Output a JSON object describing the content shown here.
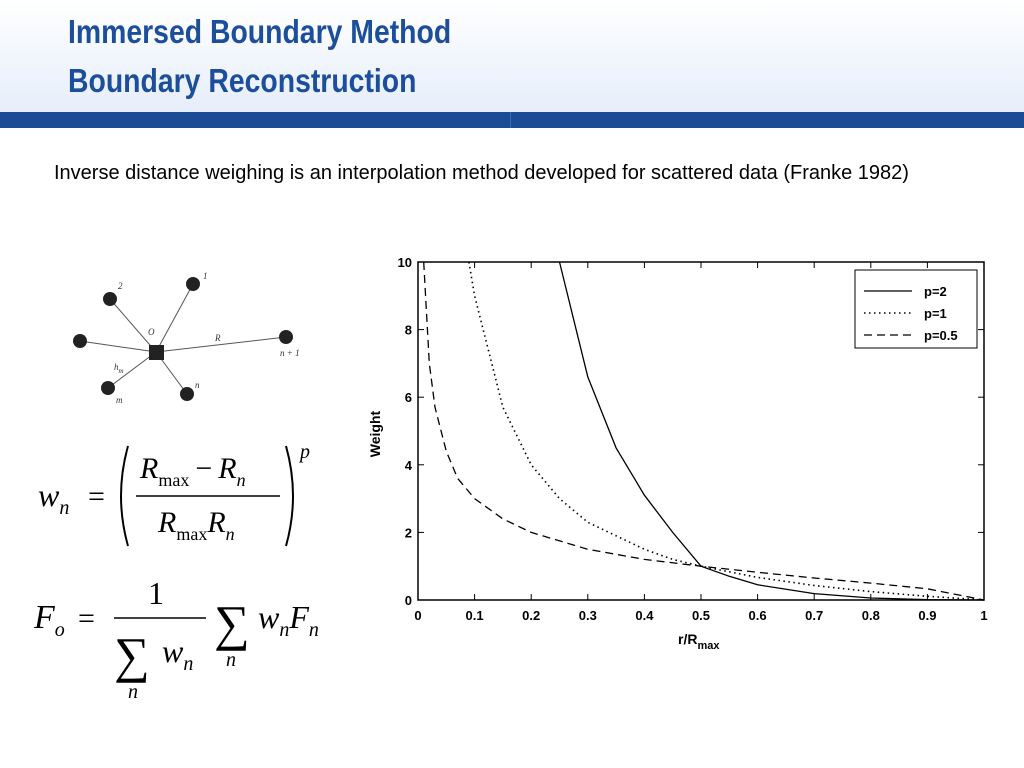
{
  "slide": {
    "title_line1": "Immersed Boundary Method",
    "title_line2": "Boundary Reconstruction",
    "body_text": "Inverse distance weighing is an interpolation method developed for scattered data (Franke 1982)"
  },
  "diagram": {
    "center_label": "O",
    "radius_label": "R",
    "distance_label_base": "h",
    "distance_label_sub": "m",
    "node_labels": [
      "1",
      "2",
      "n + 1",
      "n",
      "m"
    ]
  },
  "formulas": {
    "weight": {
      "lhs_base": "w",
      "lhs_sub": "n",
      "eq": "=",
      "num_R1": "R",
      "num_sub1": "max",
      "minus": "−",
      "num_R2": "R",
      "num_sub2": "n",
      "den_R1": "R",
      "den_sub1": "max",
      "den_R2": "R",
      "den_sub2": "n",
      "exponent": "p"
    },
    "interp": {
      "lhs_base": "F",
      "lhs_sub": "o",
      "eq": "=",
      "num": "1",
      "sum_symbol": "∑",
      "den_w": "w",
      "den_sub": "n",
      "den_index": "n",
      "sum2_index": "n",
      "w": "w",
      "w_sub": "n",
      "F": "F",
      "F_sub": "n"
    }
  },
  "chart_data": {
    "type": "line",
    "xlabel": "r/R",
    "xlabel_sub": "max",
    "ylabel": "Weight",
    "xlim": [
      0,
      1
    ],
    "ylim": [
      0,
      10
    ],
    "x_ticks": [
      "0",
      "0.1",
      "0.2",
      "0.3",
      "0.4",
      "0.5",
      "0.6",
      "0.7",
      "0.8",
      "0.9",
      "1"
    ],
    "y_ticks": [
      "0",
      "2",
      "4",
      "6",
      "8",
      "10"
    ],
    "legend_position": "top-right",
    "series": [
      {
        "name": "p=2",
        "exponent": 2,
        "style": "solid",
        "x": [
          0.25,
          0.3,
          0.35,
          0.4,
          0.45,
          0.5,
          0.55,
          0.6,
          0.7,
          0.8,
          0.9,
          1.0
        ],
        "y": [
          10.0,
          6.6,
          4.5,
          3.1,
          2.0,
          1.0,
          0.7,
          0.45,
          0.19,
          0.06,
          0.01,
          0.0
        ]
      },
      {
        "name": "p=1",
        "exponent": 1,
        "style": "dotted",
        "x": [
          0.09,
          0.1,
          0.15,
          0.2,
          0.25,
          0.3,
          0.35,
          0.4,
          0.45,
          0.5,
          0.6,
          0.7,
          0.8,
          0.9,
          1.0
        ],
        "y": [
          10.0,
          9.0,
          5.7,
          4.0,
          3.0,
          2.3,
          1.9,
          1.5,
          1.2,
          1.0,
          0.67,
          0.43,
          0.25,
          0.11,
          0.0
        ]
      },
      {
        "name": "p=0.5",
        "exponent": 0.5,
        "style": "dashed",
        "x": [
          0.01,
          0.02,
          0.03,
          0.05,
          0.07,
          0.1,
          0.15,
          0.2,
          0.3,
          0.4,
          0.5,
          0.6,
          0.7,
          0.8,
          0.9,
          1.0
        ],
        "y": [
          10.0,
          7.0,
          5.7,
          4.4,
          3.6,
          3.0,
          2.4,
          2.0,
          1.5,
          1.2,
          1.0,
          0.82,
          0.65,
          0.5,
          0.33,
          0.0
        ]
      }
    ]
  }
}
